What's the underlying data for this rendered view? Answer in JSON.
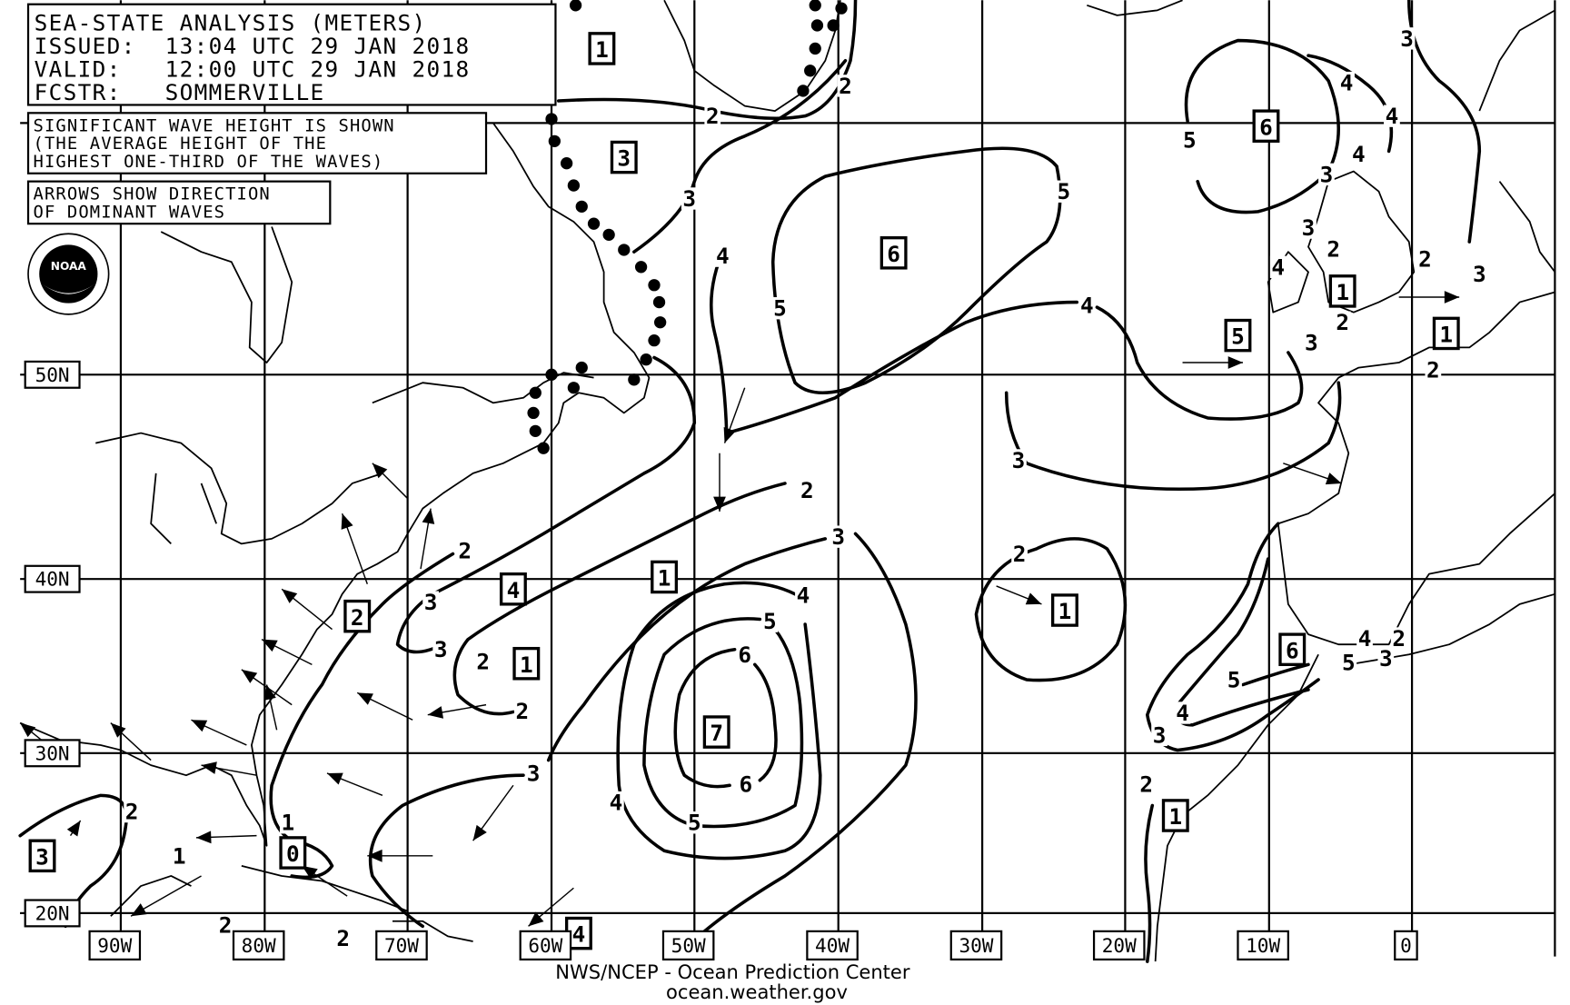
{
  "header": {
    "title": "SEA-STATE ANALYSIS (METERS)",
    "issued": "ISSUED:  13:04 UTC 29 JAN 2018",
    "valid": "VALID:   12:00 UTC 29 JAN 2018",
    "forecaster": "FCSTR:   SOMMERVILLE"
  },
  "notes": {
    "wave_height": [
      "SIGNIFICANT WAVE HEIGHT IS SHOWN",
      "(THE AVERAGE HEIGHT OF THE",
      "HIGHEST ONE-THIRD OF THE WAVES)"
    ],
    "arrows": [
      "ARROWS SHOW DIRECTION",
      "OF DOMINANT WAVES"
    ]
  },
  "logo": {
    "text": "NOAA"
  },
  "longitude_labels": [
    "90W",
    "80W",
    "70W",
    "60W",
    "50W",
    "40W",
    "30W",
    "20W",
    "10W",
    "0"
  ],
  "latitude_labels": [
    "50N",
    "40N",
    "30N",
    "20N"
  ],
  "boxed_values": [
    "1",
    "3",
    "6",
    "6",
    "5",
    "1",
    "1",
    "4",
    "1",
    "2",
    "1",
    "1",
    "6",
    "7",
    "1",
    "3",
    "0",
    "4"
  ],
  "contour_labels": [
    "2",
    "2",
    "3",
    "4",
    "4",
    "5",
    "4",
    "3",
    "3",
    "2",
    "4",
    "2",
    "3",
    "2",
    "3",
    "2",
    "5",
    "3",
    "4",
    "5",
    "4",
    "3",
    "2",
    "3",
    "2",
    "3",
    "3",
    "2",
    "2",
    "4",
    "5",
    "6",
    "6",
    "4",
    "5",
    "3",
    "2",
    "5",
    "4",
    "3",
    "2",
    "4",
    "2",
    "5",
    "3",
    "2",
    "1",
    "1",
    "2",
    "2"
  ],
  "footer": {
    "credit": "NWS/NCEP - Ocean Prediction Center",
    "url": "ocean.weather.gov"
  },
  "colors": {
    "foreground": "#000000",
    "background": "#ffffff"
  }
}
